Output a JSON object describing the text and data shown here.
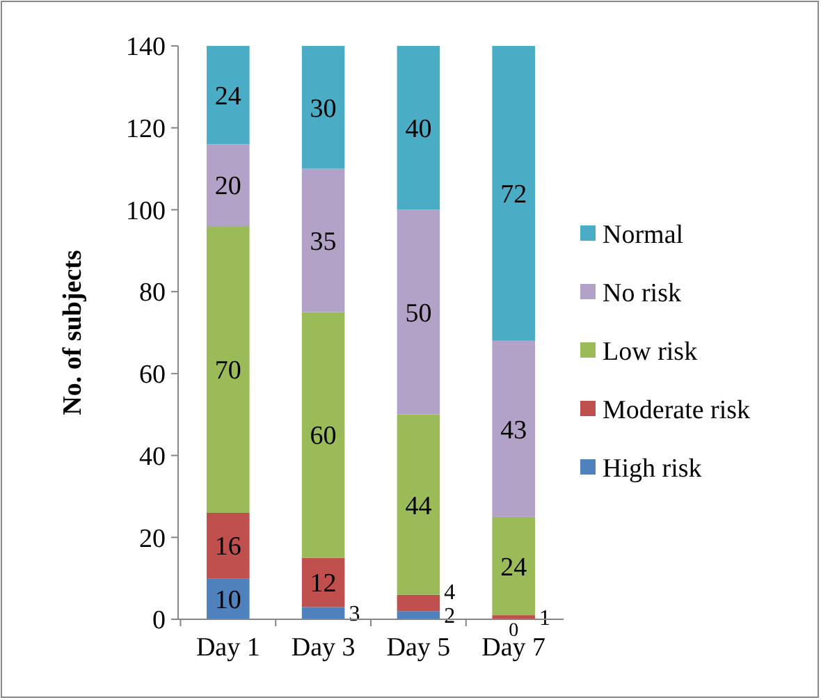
{
  "chart_data": {
    "type": "bar",
    "stacked": true,
    "ylabel": "No. of subjects",
    "categories": [
      "Day 1",
      "Day 3",
      "Day 5",
      "Day 7"
    ],
    "series": [
      {
        "name": "High risk",
        "color": "#4f81bd",
        "values": [
          10,
          3,
          2,
          0
        ],
        "value_labels": [
          "10",
          "3",
          "2",
          null
        ]
      },
      {
        "name": "Moderate risk",
        "color": "#c0504d",
        "values": [
          16,
          12,
          4,
          1
        ],
        "value_labels": [
          "16",
          "12",
          "4",
          "1"
        ]
      },
      {
        "name": "Low risk",
        "color": "#9bbb59",
        "values": [
          70,
          60,
          44,
          24
        ],
        "value_labels": [
          "70",
          "60",
          "44",
          "24"
        ]
      },
      {
        "name": "No risk",
        "color": "#b3a2c7",
        "values": [
          20,
          35,
          50,
          43
        ],
        "value_labels": [
          "20",
          "35",
          "50",
          "43"
        ]
      },
      {
        "name": "Normal",
        "color": "#4bacc6",
        "values": [
          24,
          30,
          40,
          72
        ],
        "value_labels": [
          "24",
          "30",
          "40",
          "72"
        ]
      }
    ],
    "annotations": [
      {
        "text": "0",
        "x": "Day 7",
        "y": 0
      }
    ],
    "ylim": [
      0,
      140
    ],
    "yticks": [
      0,
      20,
      40,
      60,
      80,
      100,
      120,
      140
    ],
    "legend": "right",
    "grid": false
  }
}
